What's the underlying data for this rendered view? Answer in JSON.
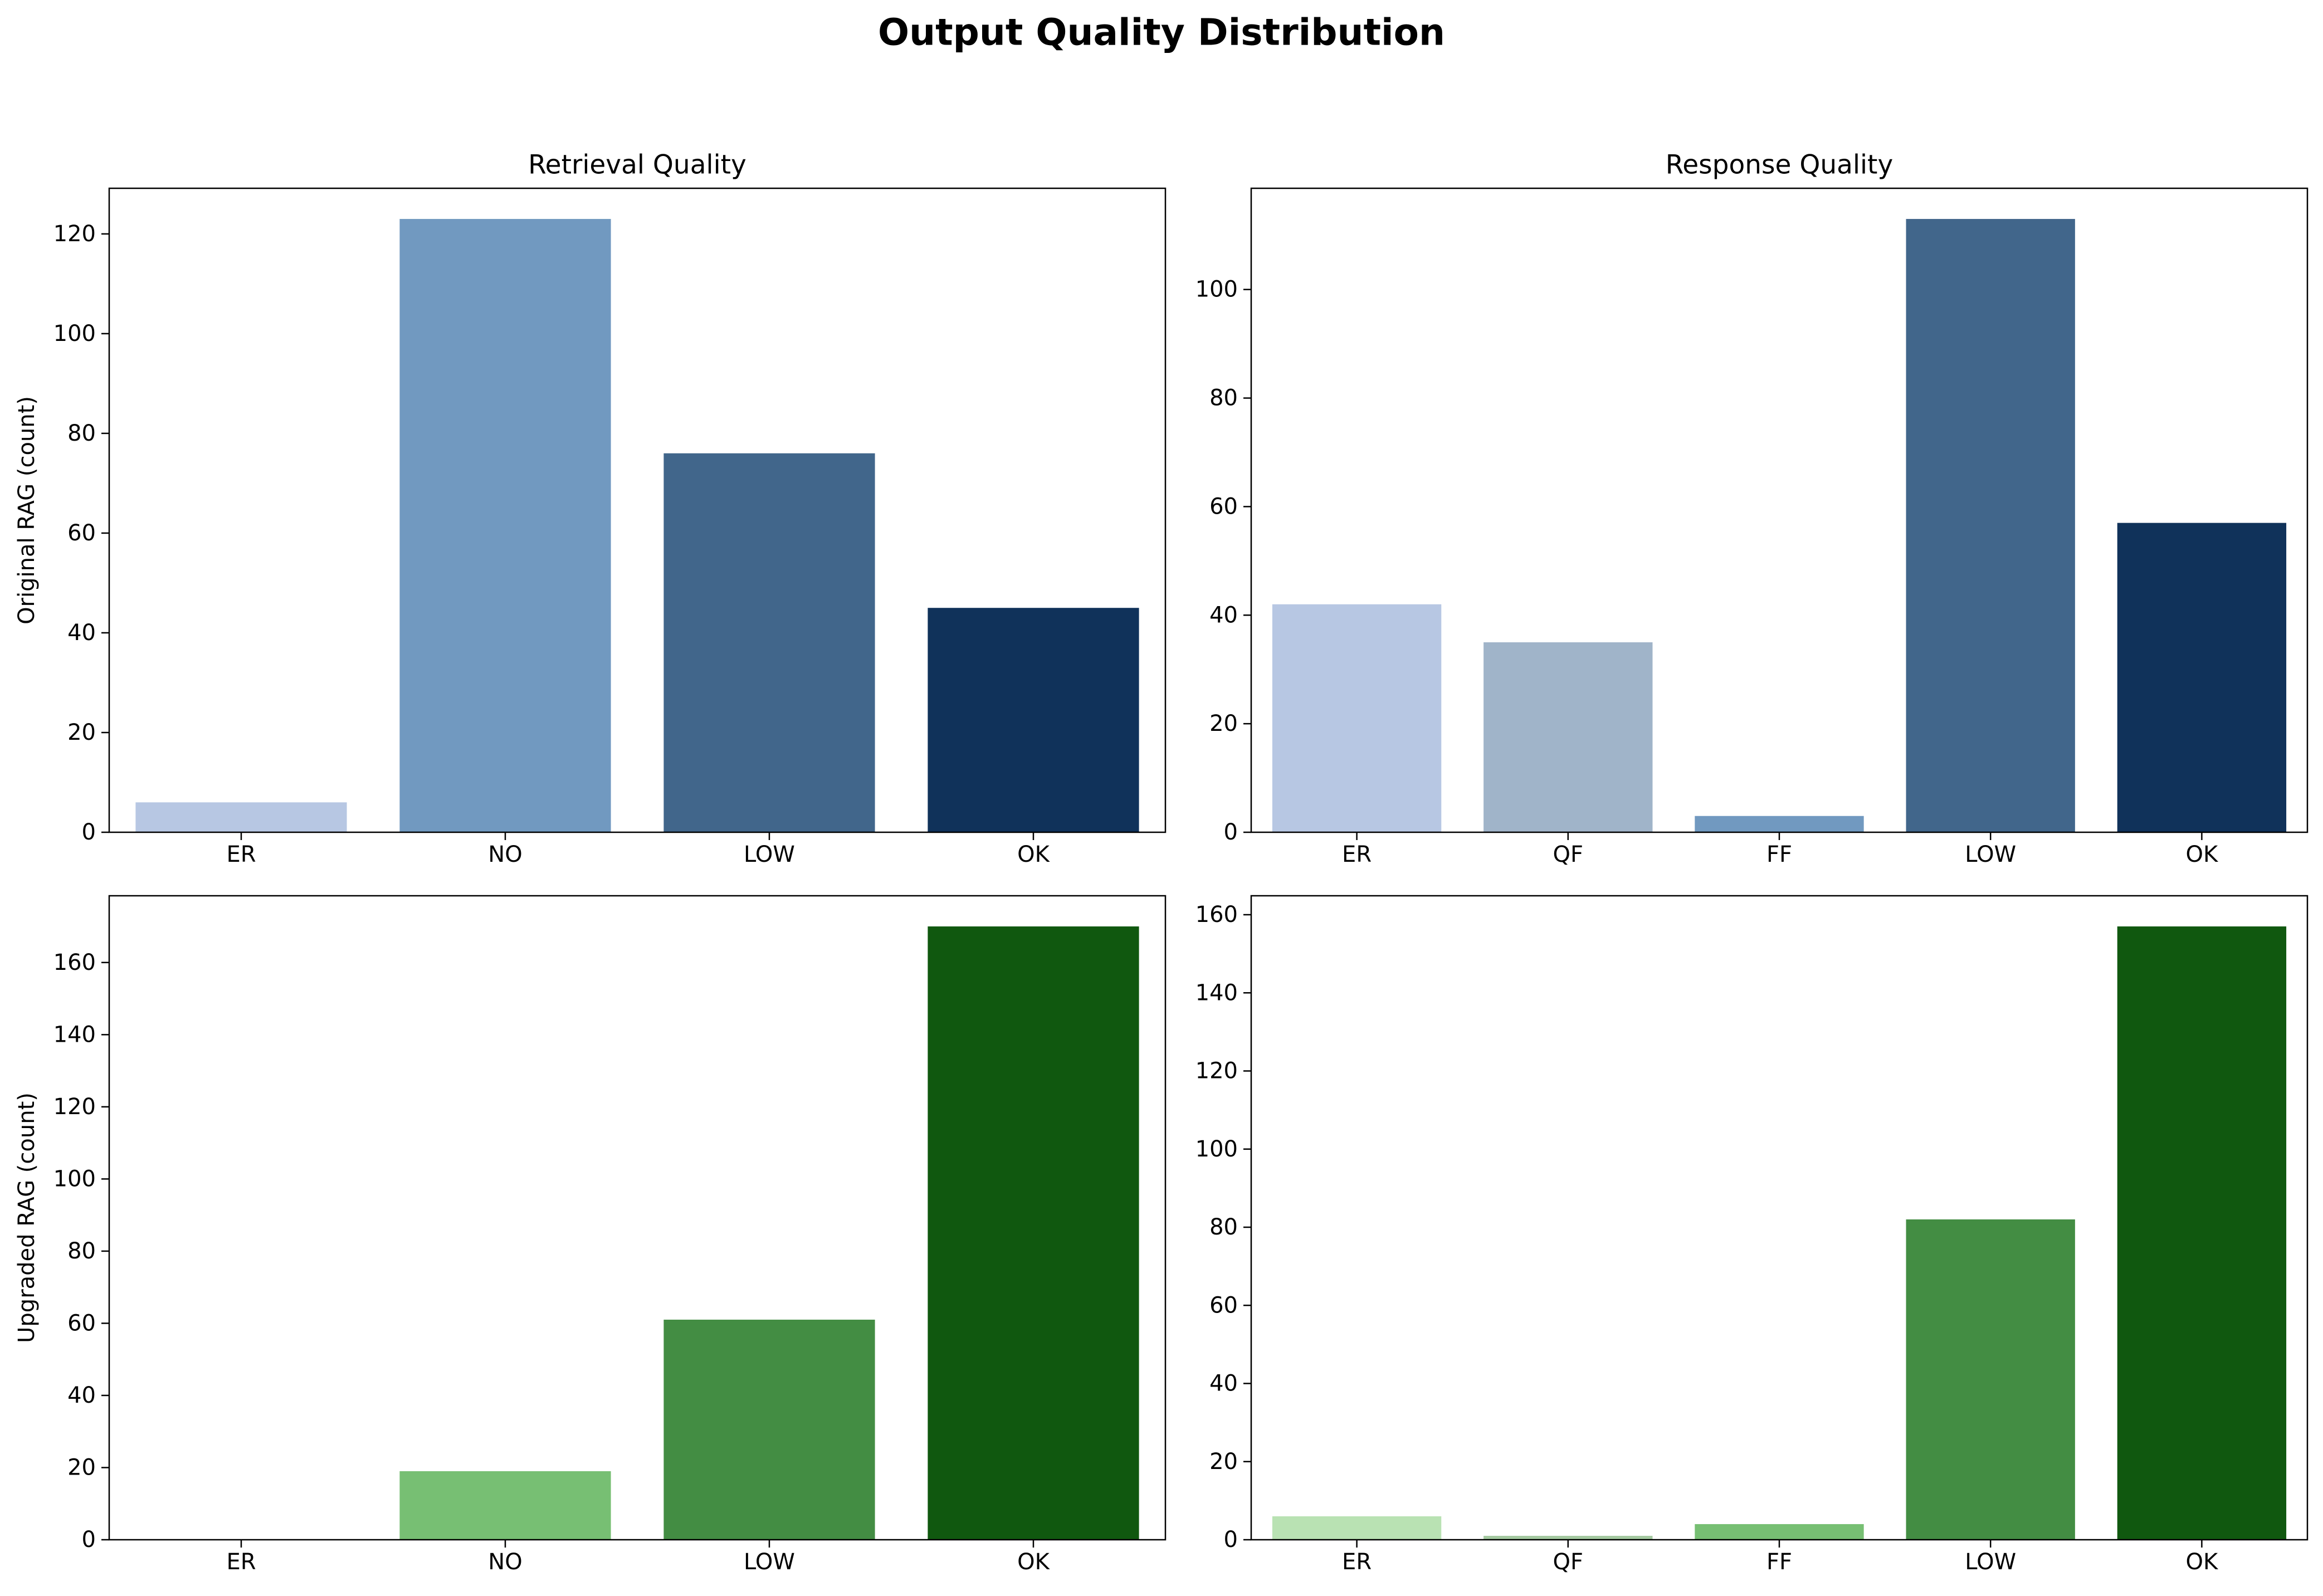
{
  "figure": {
    "title": "Output Quality Distribution"
  },
  "chart_data": [
    {
      "type": "bar",
      "title": "Retrieval Quality",
      "xlabel": "",
      "ylabel": "Original RAG (count)",
      "categories": [
        "ER",
        "NO",
        "LOW",
        "OK"
      ],
      "values": [
        6,
        123,
        76,
        45
      ],
      "colors": [
        "#b7c7e3",
        "#7199c0",
        "#41668b",
        "#10325a"
      ],
      "ylim": [
        0,
        129.15
      ],
      "yticks": [
        0,
        20,
        40,
        60,
        80,
        100,
        120
      ],
      "grid": false,
      "legend": false
    },
    {
      "type": "bar",
      "title": "Response Quality",
      "xlabel": "",
      "ylabel": "",
      "categories": [
        "ER",
        "QF",
        "FF",
        "LOW",
        "OK"
      ],
      "values": [
        42,
        35,
        3,
        113,
        57
      ],
      "colors": [
        "#b7c7e3",
        "#a0b4c9",
        "#7199c0",
        "#41668b",
        "#10325a"
      ],
      "ylim": [
        0,
        118.65
      ],
      "yticks": [
        0,
        20,
        40,
        60,
        80,
        100
      ],
      "grid": false,
      "legend": false
    },
    {
      "type": "bar",
      "title": "",
      "xlabel": "",
      "ylabel": "Upgraded RAG (count)",
      "categories": [
        "ER",
        "NO",
        "LOW",
        "OK"
      ],
      "values": [
        0,
        19,
        61,
        170
      ],
      "colors": [
        "#b9e2b3",
        "#77bf73",
        "#438d43",
        "#10580f"
      ],
      "ylim": [
        0,
        178.5
      ],
      "yticks": [
        0,
        20,
        40,
        60,
        80,
        100,
        120,
        140,
        160
      ],
      "grid": false,
      "legend": false
    },
    {
      "type": "bar",
      "title": "",
      "xlabel": "",
      "ylabel": "",
      "categories": [
        "ER",
        "QF",
        "FF",
        "LOW",
        "OK"
      ],
      "values": [
        6,
        1,
        4,
        82,
        157
      ],
      "colors": [
        "#b9e2b3",
        "#a4c9a0",
        "#77bf73",
        "#438d43",
        "#10580f"
      ],
      "ylim": [
        0,
        164.85
      ],
      "yticks": [
        0,
        20,
        40,
        60,
        80,
        100,
        120,
        140,
        160
      ],
      "grid": false,
      "legend": false
    }
  ]
}
